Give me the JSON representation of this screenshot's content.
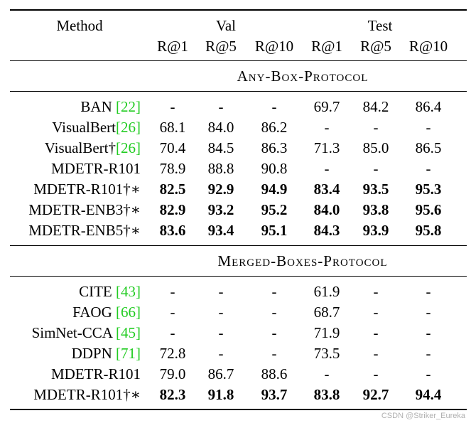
{
  "header": {
    "method": "Method",
    "val": "Val",
    "test": "Test",
    "metrics": [
      "R@1",
      "R@5",
      "R@10",
      "R@1",
      "R@5",
      "R@10"
    ]
  },
  "sections": [
    {
      "title": "Any-Box-Protocol",
      "rows": [
        {
          "name": "BAN ",
          "ref": "[22]",
          "values": [
            "-",
            "-",
            "-",
            "69.7",
            "84.2",
            "86.4"
          ],
          "bold": false
        },
        {
          "name": "VisualBert",
          "ref": "[26]",
          "values": [
            "68.1",
            "84.0",
            "86.2",
            "-",
            "-",
            "-"
          ],
          "bold": false
        },
        {
          "name": "VisualBert†",
          "ref": "[26]",
          "values": [
            "70.4",
            "84.5",
            "86.3",
            "71.3",
            "85.0",
            "86.5"
          ],
          "bold": false
        },
        {
          "name": "MDETR-R101",
          "ref": "",
          "values": [
            "78.9",
            "88.8",
            "90.8",
            "-",
            "-",
            "-"
          ],
          "bold": false
        },
        {
          "name": "MDETR-R101†∗",
          "ref": "",
          "values": [
            "82.5",
            "92.9",
            "94.9",
            "83.4",
            "93.5",
            "95.3"
          ],
          "bold": true
        },
        {
          "name": "MDETR-ENB3†∗",
          "ref": "",
          "values": [
            "82.9",
            "93.2",
            "95.2",
            "84.0",
            "93.8",
            "95.6"
          ],
          "bold": true
        },
        {
          "name": "MDETR-ENB5†∗",
          "ref": "",
          "values": [
            "83.6",
            "93.4",
            "95.1",
            "84.3",
            "93.9",
            "95.8"
          ],
          "bold": true
        }
      ]
    },
    {
      "title": "Merged-Boxes-Protocol",
      "rows": [
        {
          "name": "CITE ",
          "ref": "[43]",
          "values": [
            "-",
            "-",
            "-",
            "61.9",
            "-",
            "-"
          ],
          "bold": false
        },
        {
          "name": "FAOG ",
          "ref": "[66]",
          "values": [
            "-",
            "-",
            "-",
            "68.7",
            "-",
            "-"
          ],
          "bold": false
        },
        {
          "name": "SimNet-CCA ",
          "ref": "[45]",
          "values": [
            "-",
            "-",
            "-",
            "71.9",
            "-",
            "-"
          ],
          "bold": false
        },
        {
          "name": "DDPN ",
          "ref": "[71]",
          "values": [
            "72.8",
            "-",
            "-",
            "73.5",
            "-",
            "-"
          ],
          "bold": false
        },
        {
          "name": "MDETR-R101",
          "ref": "",
          "values": [
            "79.0",
            "86.7",
            "88.6",
            "-",
            "-",
            "-"
          ],
          "bold": false
        },
        {
          "name": "MDETR-R101†∗",
          "ref": "",
          "values": [
            "82.3",
            "91.8",
            "93.7",
            "83.8",
            "92.7",
            "94.4"
          ],
          "bold": true
        }
      ]
    }
  ],
  "watermark": "CSDN @Striker_Eureka"
}
